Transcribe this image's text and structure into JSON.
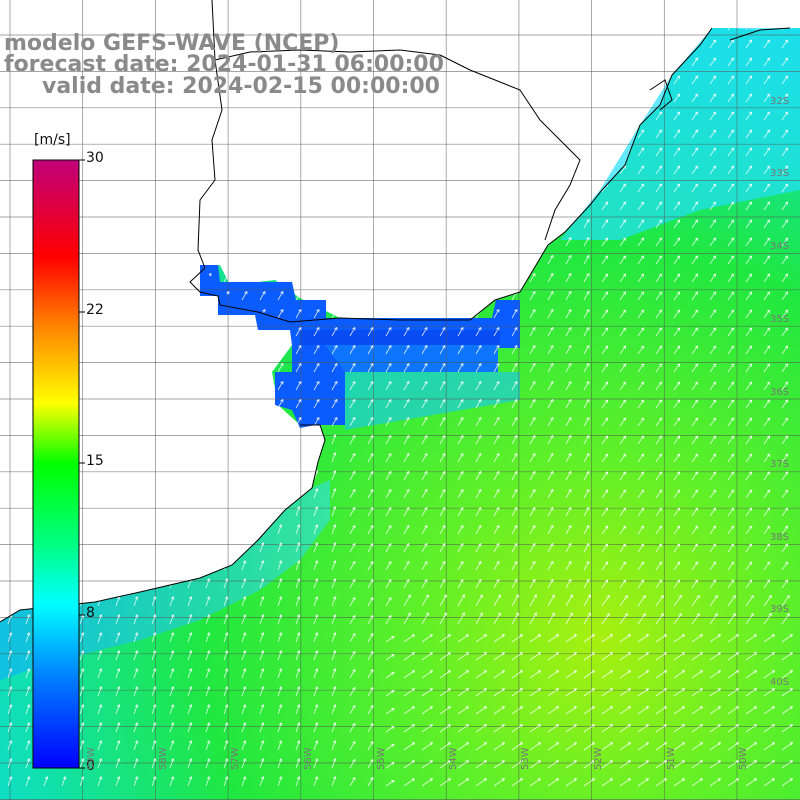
{
  "title": {
    "line1": "modelo GEFS-WAVE (NCEP)",
    "line2": "forecast date: 2024-01-31 06:00:00",
    "line3": "valid date: 2024-02-15 00:00:00"
  },
  "colorbar": {
    "unit": "[m/s]",
    "ticks": [
      {
        "label": "30",
        "value": 30
      },
      {
        "label": "22",
        "value": 22
      },
      {
        "label": "15",
        "value": 15
      },
      {
        "label": "8",
        "value": 8
      },
      {
        "label": "0",
        "value": 0
      }
    ],
    "min": 0,
    "max": 30,
    "colors": [
      "#0000ff",
      "#0088ff",
      "#00ffff",
      "#00ff00",
      "#ffff00",
      "#ff8800",
      "#ff0000",
      "#c0007a"
    ]
  },
  "map_labels": {
    "latitudes": [
      "32S",
      "33S",
      "34S",
      "35S",
      "36S",
      "37S",
      "38S",
      "39S",
      "40S"
    ],
    "longitudes": [
      "59W",
      "58W",
      "57W",
      "56W",
      "55W",
      "54W",
      "53W",
      "52W",
      "51W",
      "50W"
    ]
  },
  "map_style": {
    "land_color": "#ffffff",
    "coast_color": "#000000",
    "grid_color": "#555555",
    "arrow_color": "#ffffff"
  }
}
